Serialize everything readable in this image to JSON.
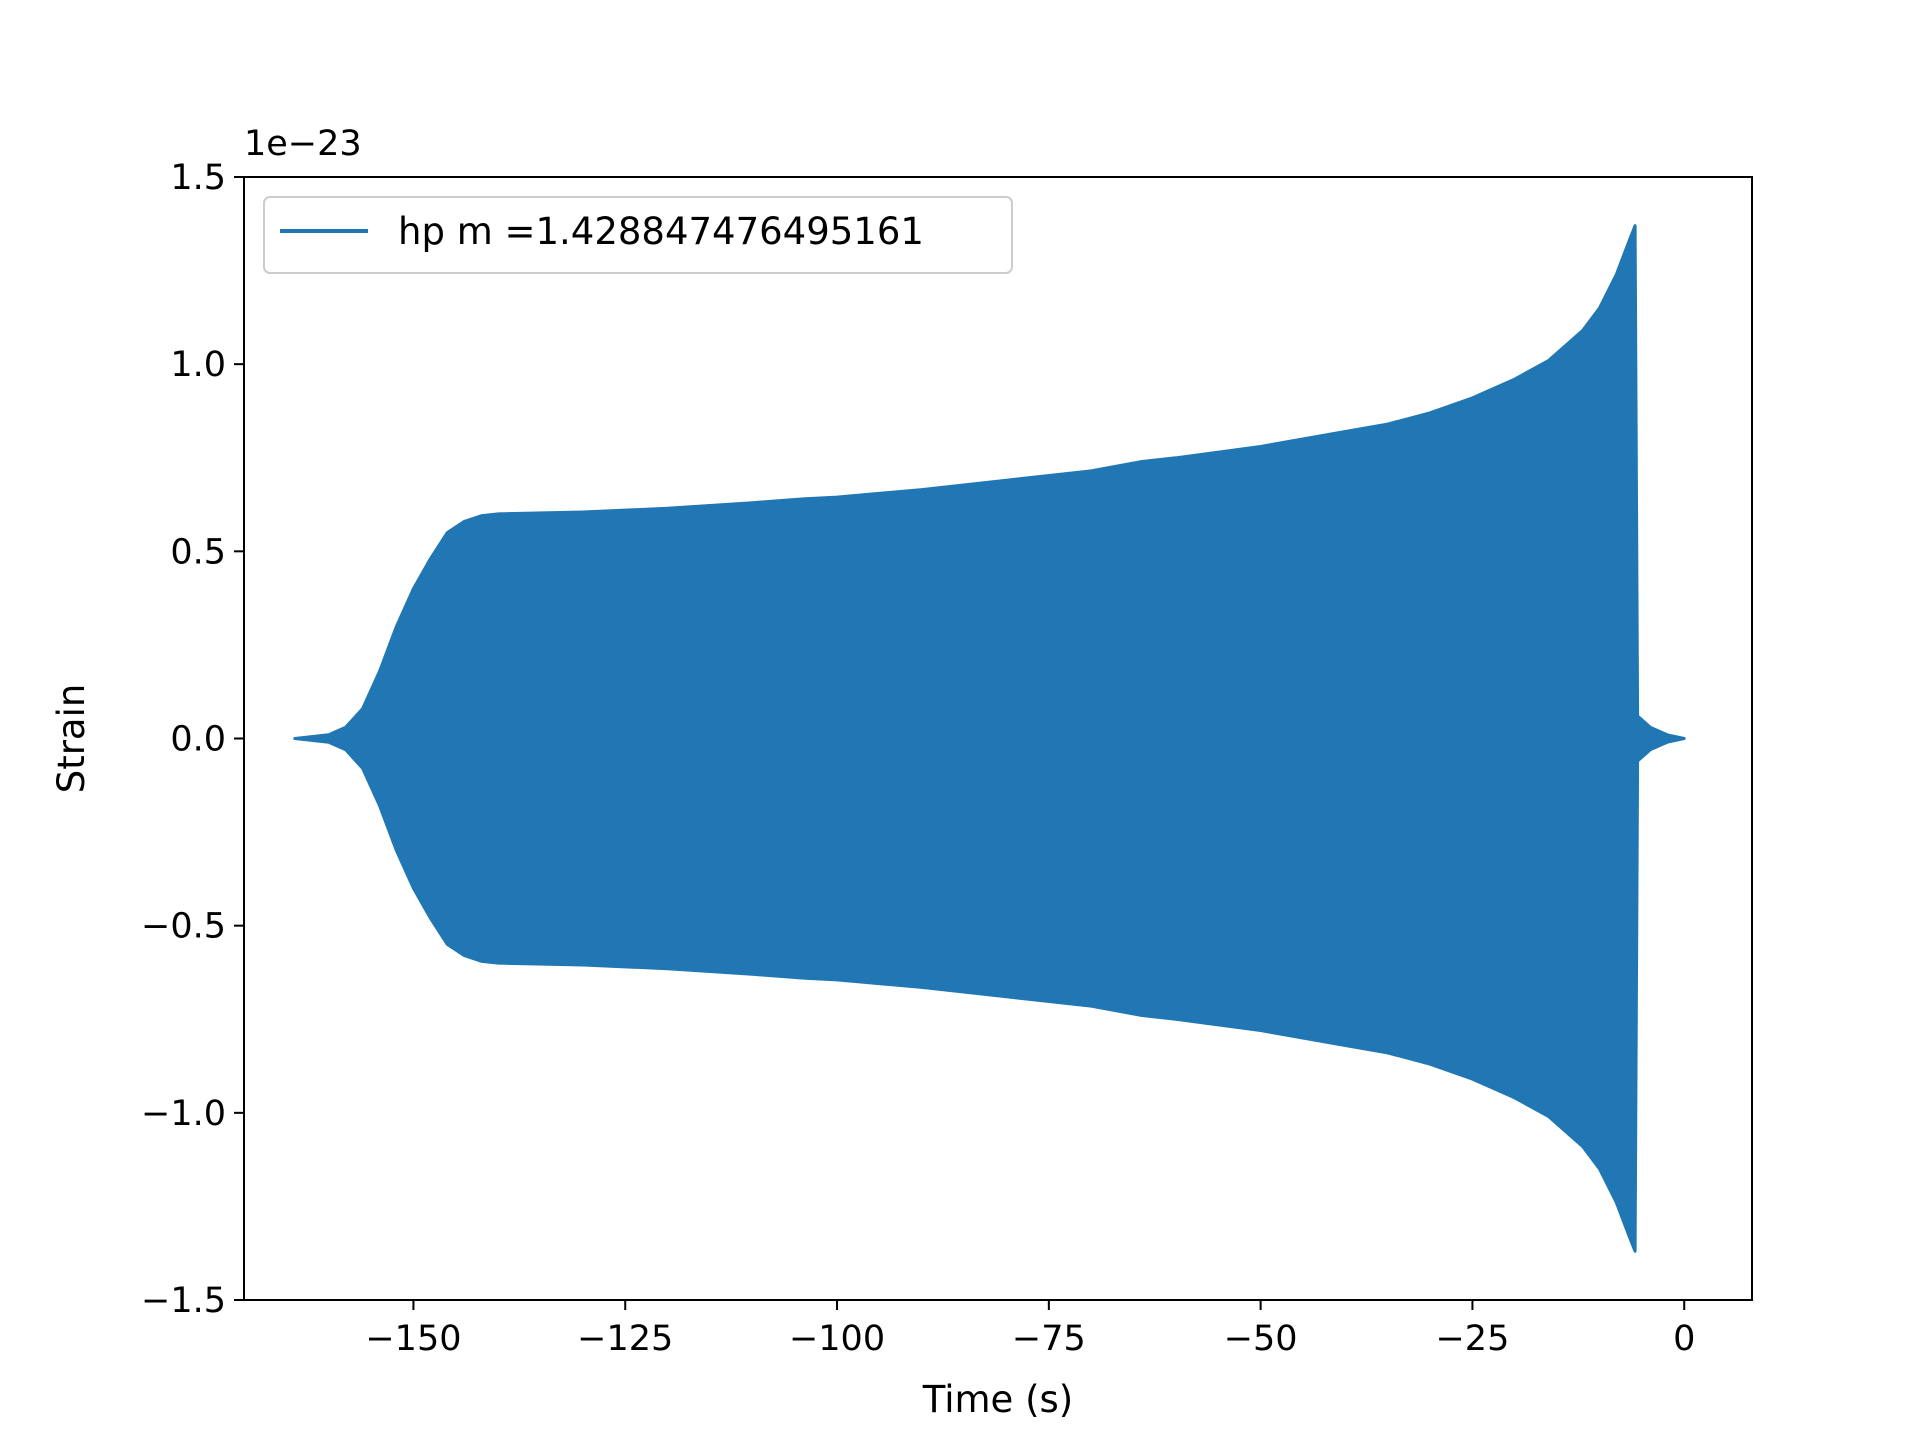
{
  "chart_data": {
    "type": "line",
    "title": "",
    "xlabel": "Time (s)",
    "ylabel": "Strain",
    "y_offset_label": "1e−23",
    "xlim": [
      -170,
      8
    ],
    "ylim": [
      -1.5,
      1.5
    ],
    "grid": false,
    "legend_position": "upper left",
    "x_ticks": [
      -150,
      -125,
      -100,
      -75,
      -50,
      -25,
      0
    ],
    "x_tick_labels": [
      "−150",
      "−125",
      "−100",
      "−75",
      "−50",
      "−25",
      "0"
    ],
    "y_ticks": [
      -1.5,
      -1.0,
      -0.5,
      0.0,
      0.5,
      1.0,
      1.5
    ],
    "y_tick_labels": [
      "−1.5",
      "−1.0",
      "−0.5",
      "0.0",
      "0.5",
      "1.0",
      "1.5"
    ],
    "series": [
      {
        "name": "hp m =1.428847476495161",
        "color": "#2077b4",
        "envelope": {
          "time": [
            -164,
            -162,
            -160,
            -158,
            -156,
            -154,
            -152,
            -150,
            -148,
            -146,
            -144,
            -142,
            -140,
            -130,
            -120,
            -110,
            -104,
            -100,
            -90,
            -80,
            -70,
            -64,
            -60,
            -50,
            -40,
            -35,
            -30,
            -25,
            -20,
            -16,
            -12,
            -10,
            -8,
            -6.5,
            -5.8,
            -5.5,
            -4,
            -2,
            0
          ],
          "upper": [
            0.0,
            0.005,
            0.01,
            0.03,
            0.08,
            0.18,
            0.3,
            0.4,
            0.48,
            0.55,
            0.58,
            0.595,
            0.6,
            0.605,
            0.615,
            0.63,
            0.64,
            0.645,
            0.665,
            0.69,
            0.715,
            0.74,
            0.75,
            0.78,
            0.82,
            0.84,
            0.87,
            0.91,
            0.96,
            1.01,
            1.09,
            1.15,
            1.24,
            1.33,
            1.37,
            0.06,
            0.03,
            0.01,
            0.0
          ],
          "lower": [
            0.0,
            -0.005,
            -0.01,
            -0.03,
            -0.08,
            -0.18,
            -0.3,
            -0.4,
            -0.48,
            -0.55,
            -0.58,
            -0.595,
            -0.6,
            -0.605,
            -0.615,
            -0.63,
            -0.64,
            -0.645,
            -0.665,
            -0.69,
            -0.715,
            -0.74,
            -0.75,
            -0.78,
            -0.82,
            -0.84,
            -0.87,
            -0.91,
            -0.96,
            -1.01,
            -1.09,
            -1.15,
            -1.24,
            -1.33,
            -1.37,
            -0.06,
            -0.03,
            -0.01,
            0.0
          ]
        }
      }
    ]
  }
}
